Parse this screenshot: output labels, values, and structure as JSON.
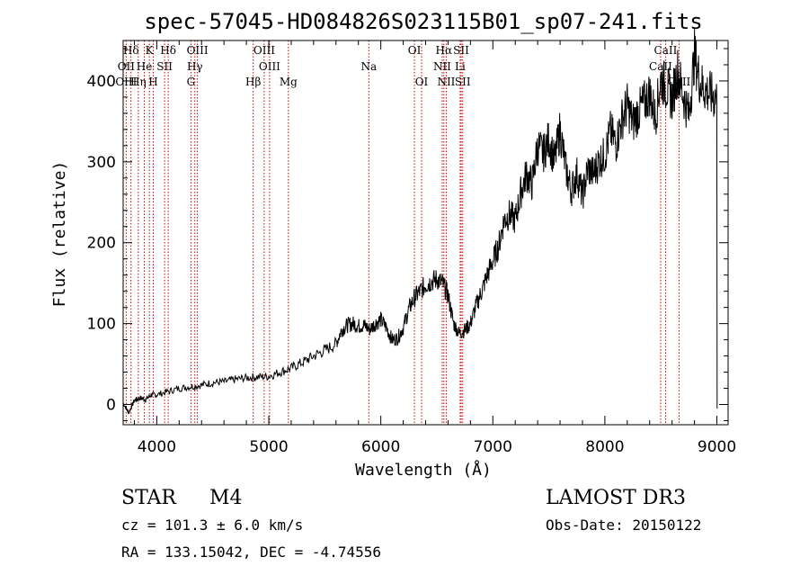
{
  "chart_data": {
    "type": "line",
    "title": "spec-57045-HD084826S023115B01_sp07-241.fits",
    "xlabel": "Wavelength (Å)",
    "ylabel": "Flux (relative)",
    "xlim": [
      3700,
      9100
    ],
    "ylim": [
      -25,
      450
    ],
    "x_ticks": [
      4000,
      5000,
      6000,
      7000,
      8000,
      9000
    ],
    "y_ticks": [
      0,
      100,
      200,
      300,
      400
    ],
    "spectrum": {
      "name": "flux",
      "x": [
        3700,
        3750,
        3800,
        3850,
        3900,
        3950,
        4000,
        4100,
        4200,
        4300,
        4400,
        4500,
        4600,
        4700,
        4800,
        4900,
        5000,
        5100,
        5200,
        5300,
        5400,
        5500,
        5600,
        5650,
        5700,
        5750,
        5800,
        5850,
        5900,
        5950,
        6000,
        6050,
        6100,
        6150,
        6200,
        6250,
        6300,
        6350,
        6400,
        6450,
        6500,
        6550,
        6600,
        6650,
        6700,
        6750,
        6800,
        6850,
        6900,
        6950,
        7000,
        7050,
        7100,
        7150,
        7200,
        7250,
        7300,
        7350,
        7400,
        7450,
        7500,
        7550,
        7600,
        7650,
        7700,
        7750,
        7800,
        7850,
        7900,
        7950,
        8000,
        8050,
        8100,
        8150,
        8200,
        8250,
        8300,
        8350,
        8400,
        8450,
        8500,
        8550,
        8600,
        8650,
        8700,
        8750,
        8800,
        8850,
        8900,
        8950,
        9000
      ],
      "y": [
        2,
        -10,
        5,
        8,
        6,
        12,
        12,
        16,
        20,
        22,
        24,
        27,
        28,
        31,
        33,
        34,
        35,
        40,
        45,
        52,
        60,
        67,
        75,
        92,
        98,
        100,
        97,
        98,
        93,
        100,
        105,
        95,
        80,
        82,
        95,
        118,
        132,
        140,
        148,
        152,
        155,
        150,
        135,
        100,
        88,
        92,
        100,
        122,
        140,
        160,
        178,
        195,
        228,
        235,
        228,
        262,
        285,
        272,
        320,
        310,
        328,
        300,
        340,
        292,
        265,
        285,
        258,
        292,
        285,
        302,
        308,
        338,
        322,
        352,
        370,
        348,
        362,
        372,
        385,
        355,
        402,
        392,
        378,
        412,
        382,
        358,
        432,
        398,
        388,
        382,
        378
      ]
    },
    "emission_lines": [
      {
        "name": "Hδ",
        "wl": 3770,
        "row": 0
      },
      {
        "name": "OII",
        "wl": 3727,
        "row": 1
      },
      {
        "name": "OIII",
        "wl": 3727,
        "row": 2
      },
      {
        "name": "K",
        "wl": 3934,
        "row": 0
      },
      {
        "name": "He",
        "wl": 3889,
        "row": 1
      },
      {
        "name": "Hη",
        "wl": 3835,
        "row": 2
      },
      {
        "name": "H",
        "wl": 3969,
        "row": 2
      },
      {
        "name": "Hδ",
        "wl": 4102,
        "row": 0
      },
      {
        "name": "SII",
        "wl": 4070,
        "row": 1
      },
      {
        "name": "OIII",
        "wl": 4363,
        "row": 0
      },
      {
        "name": "Hγ",
        "wl": 4340,
        "row": 1
      },
      {
        "name": "G",
        "wl": 4305,
        "row": 2
      },
      {
        "name": "Hβ",
        "wl": 4861,
        "row": 2
      },
      {
        "name": "OIII",
        "wl": 4959,
        "row": 0
      },
      {
        "name": "OIII",
        "wl": 5007,
        "row": 1
      },
      {
        "name": "Mg",
        "wl": 5175,
        "row": 2
      },
      {
        "name": "Na",
        "wl": 5893,
        "row": 1
      },
      {
        "name": "OI",
        "wl": 6300,
        "row": 0
      },
      {
        "name": "OI",
        "wl": 6364,
        "row": 2
      },
      {
        "name": "Hα",
        "wl": 6563,
        "row": 0
      },
      {
        "name": "NII",
        "wl": 6548,
        "row": 1
      },
      {
        "name": "NII",
        "wl": 6584,
        "row": 2
      },
      {
        "name": "SII",
        "wl": 6717,
        "row": 0
      },
      {
        "name": "Li",
        "wl": 6708,
        "row": 1
      },
      {
        "name": "SII",
        "wl": 6731,
        "row": 2
      },
      {
        "name": "CaII",
        "wl": 8542,
        "row": 0
      },
      {
        "name": "CaII",
        "wl": 8498,
        "row": 1
      },
      {
        "name": "CaII",
        "wl": 8662,
        "row": 2
      }
    ],
    "line_color": "#cc0000",
    "spectrum_color": "#000000"
  },
  "info": {
    "class_label": "STAR",
    "subclass": "M4",
    "survey": "LAMOST DR3",
    "cz": "cz = 101.3 ± 6.0 km/s",
    "obs_date": "Obs-Date: 20150122",
    "coords": "RA = 133.15042, DEC =  -4.74556"
  }
}
